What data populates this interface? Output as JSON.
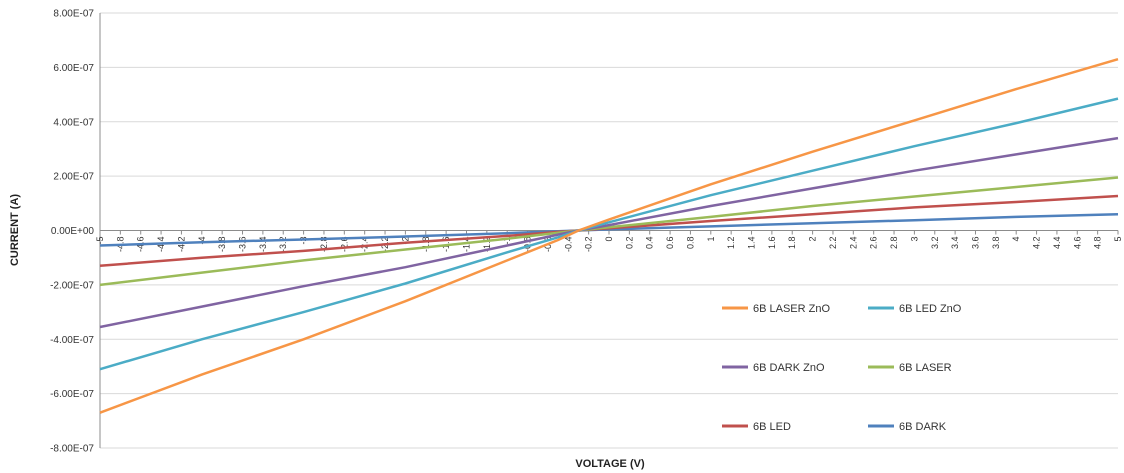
{
  "chart_data": {
    "type": "line",
    "xlabel": "VOLTAGE (V)",
    "ylabel": "CURRENT  (A)",
    "xlim": [
      -5,
      5
    ],
    "ylim": [
      -8e-07,
      8e-07
    ],
    "grid": "horizontal",
    "legend_position": "bottom-right",
    "y_ticks": [
      {
        "value": 8e-07,
        "label": "8.00E-07"
      },
      {
        "value": 6e-07,
        "label": "6.00E-07"
      },
      {
        "value": 4e-07,
        "label": "4.00E-07"
      },
      {
        "value": 2e-07,
        "label": "2.00E-07"
      },
      {
        "value": 0,
        "label": "0.00E+00"
      },
      {
        "value": -2e-07,
        "label": "-2.00E-07"
      },
      {
        "value": -4e-07,
        "label": "-4.00E-07"
      },
      {
        "value": -6e-07,
        "label": "-6.00E-07"
      },
      {
        "value": -8e-07,
        "label": "-8.00E-07"
      }
    ],
    "x_ticks": [
      {
        "value": -5,
        "label": "-5"
      },
      {
        "value": -4.8,
        "label": "-4.8"
      },
      {
        "value": -4.6,
        "label": "-4.6"
      },
      {
        "value": -4.4,
        "label": "-4.4"
      },
      {
        "value": -4.2,
        "label": "-4.2"
      },
      {
        "value": -4,
        "label": "-4"
      },
      {
        "value": -3.8,
        "label": "-3.8"
      },
      {
        "value": -3.6,
        "label": "-3.6"
      },
      {
        "value": -3.4,
        "label": "-3.4"
      },
      {
        "value": -3.2,
        "label": "-3.2"
      },
      {
        "value": -3,
        "label": "-3"
      },
      {
        "value": -2.8,
        "label": "-2.8"
      },
      {
        "value": -2.6,
        "label": "-2.6"
      },
      {
        "value": -2.4,
        "label": "-2.4"
      },
      {
        "value": -2.2,
        "label": "-2.2"
      },
      {
        "value": -2,
        "label": "-2"
      },
      {
        "value": -1.8,
        "label": "-1.8"
      },
      {
        "value": -1.6,
        "label": "-1.6"
      },
      {
        "value": -1.4,
        "label": "-1.4"
      },
      {
        "value": -1.2,
        "label": "-1.2"
      },
      {
        "value": -1,
        "label": "-1"
      },
      {
        "value": -0.8,
        "label": "-0.8"
      },
      {
        "value": -0.6,
        "label": "-0.6"
      },
      {
        "value": -0.4,
        "label": "-0.4"
      },
      {
        "value": -0.2,
        "label": "-0.2"
      },
      {
        "value": 0,
        "label": "0"
      },
      {
        "value": 0.2,
        "label": "0.2"
      },
      {
        "value": 0.4,
        "label": "0.4"
      },
      {
        "value": 0.6,
        "label": "0.6"
      },
      {
        "value": 0.8,
        "label": "0.8"
      },
      {
        "value": 1,
        "label": "1"
      },
      {
        "value": 1.2,
        "label": "1.2"
      },
      {
        "value": 1.4,
        "label": "1.4"
      },
      {
        "value": 1.6,
        "label": "1.6"
      },
      {
        "value": 1.8,
        "label": "1.8"
      },
      {
        "value": 2,
        "label": "2"
      },
      {
        "value": 2.2,
        "label": "2.2"
      },
      {
        "value": 2.4,
        "label": "2.4"
      },
      {
        "value": 2.6,
        "label": "2.6"
      },
      {
        "value": 2.8,
        "label": "2.8"
      },
      {
        "value": 3,
        "label": "3"
      },
      {
        "value": 3.2,
        "label": "3.2"
      },
      {
        "value": 3.4,
        "label": "3.4"
      },
      {
        "value": 3.6,
        "label": "3.6"
      },
      {
        "value": 3.8,
        "label": "3.8"
      },
      {
        "value": 4,
        "label": "4"
      },
      {
        "value": 4.2,
        "label": "4.2"
      },
      {
        "value": 4.4,
        "label": "4.4"
      },
      {
        "value": 4.6,
        "label": "4.6"
      },
      {
        "value": 4.8,
        "label": "4.8"
      },
      {
        "value": 5,
        "label": "5"
      }
    ],
    "series": [
      {
        "name": "6B LASER ZnO",
        "color": "#F79646",
        "x": [
          -5,
          -4,
          -3,
          -2,
          -1,
          -0.5,
          -0.3,
          0,
          1,
          2,
          3,
          4,
          5
        ],
        "y": [
          -6.7e-07,
          -5.3e-07,
          -4e-07,
          -2.6e-07,
          -1.1e-07,
          -3.5e-08,
          0,
          4e-08,
          1.7e-07,
          2.9e-07,
          4.05e-07,
          5.2e-07,
          6.3e-07
        ]
      },
      {
        "name": "6B LED ZnO",
        "color": "#4BACC6",
        "x": [
          -5,
          -4,
          -3,
          -2,
          -1,
          -0.5,
          -0.3,
          0,
          1,
          2,
          3,
          4,
          5
        ],
        "y": [
          -5.1e-07,
          -4e-07,
          -3e-07,
          -1.95e-07,
          -8e-08,
          -2.5e-08,
          0,
          3e-08,
          1.3e-07,
          2.2e-07,
          3.1e-07,
          3.95e-07,
          4.85e-07
        ]
      },
      {
        "name": "6B DARK ZnO",
        "color": "#8064A2",
        "x": [
          -5,
          -4,
          -3,
          -2,
          -1,
          -0.5,
          -0.3,
          0,
          1,
          2,
          3,
          4,
          5
        ],
        "y": [
          -3.55e-07,
          -2.8e-07,
          -2.05e-07,
          -1.35e-07,
          -5.5e-08,
          -1.5e-08,
          0,
          2e-08,
          9e-08,
          1.55e-07,
          2.2e-07,
          2.8e-07,
          3.4e-07
        ]
      },
      {
        "name": "6B LASER",
        "color": "#9BBB59",
        "x": [
          -5,
          -4,
          -3,
          -2,
          -1,
          -0.5,
          -0.3,
          0,
          1,
          2,
          3,
          4,
          5
        ],
        "y": [
          -2e-07,
          -1.55e-07,
          -1.1e-07,
          -7e-08,
          -3e-08,
          -8e-09,
          0,
          1.2e-08,
          5e-08,
          9e-08,
          1.25e-07,
          1.6e-07,
          1.95e-07
        ]
      },
      {
        "name": "6B LED",
        "color": "#C0504D",
        "x": [
          -5,
          -4,
          -3,
          -2,
          -1,
          -0.5,
          -0.3,
          0,
          1,
          2,
          3,
          4,
          5
        ],
        "y": [
          -1.3e-07,
          -1e-07,
          -7.5e-08,
          -4.5e-08,
          -2e-08,
          -5e-09,
          0,
          8e-09,
          3.5e-08,
          6e-08,
          8.5e-08,
          1.05e-07,
          1.27e-07
        ]
      },
      {
        "name": "6B DARK",
        "color": "#4F81BD",
        "x": [
          -5,
          -4,
          -3,
          -2,
          -1,
          -0.5,
          -0.3,
          0,
          1,
          2,
          3,
          4,
          5
        ],
        "y": [
          -5.5e-08,
          -4.3e-08,
          -3.3e-08,
          -2.2e-08,
          -1e-08,
          -3e-09,
          0,
          4e-09,
          1.5e-08,
          2.7e-08,
          3.8e-08,
          5e-08,
          6e-08
        ]
      }
    ]
  }
}
